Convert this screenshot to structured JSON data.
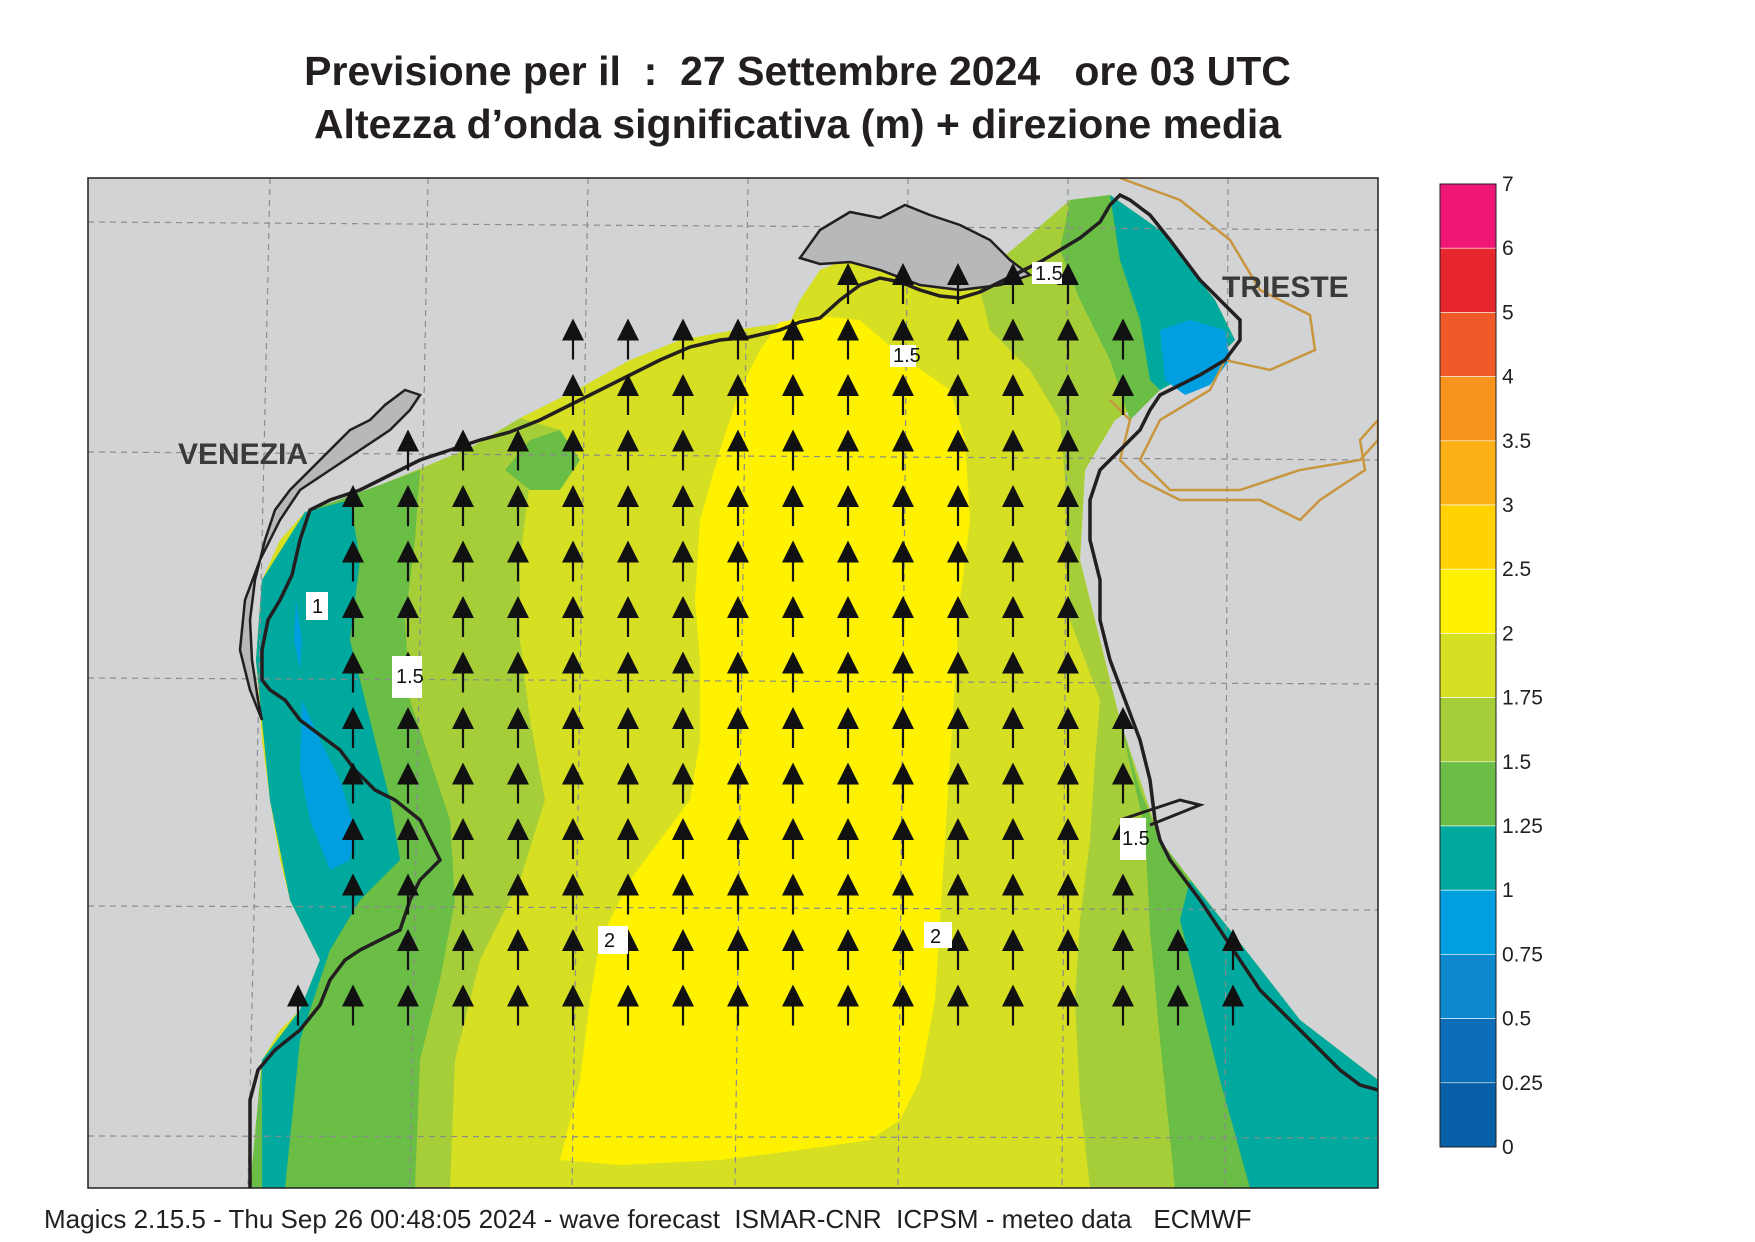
{
  "title": {
    "line1": "Previsione per il  :  27 Settembre 2024   ore 03 UTC",
    "line2": "Altezza d’onda significativa (m) + direzione media"
  },
  "footer": "Magics 2.15.5 - Thu Sep 26 00:48:05 2024 - wave forecast  ISMAR-CNR  ICPSM - meteo data   ECMWF",
  "cities": {
    "venezia": "VENEZIA",
    "trieste": "TRIESTE"
  },
  "contour_labels": [
    "1",
    "1.5",
    "1.5",
    "2",
    "2",
    "1.5",
    "1.5"
  ],
  "wave_direction": "north",
  "colorbar": {
    "levels": [
      "7",
      "6",
      "5",
      "4",
      "3.5",
      "3",
      "2.5",
      "2",
      "1.75",
      "1.5",
      "1.25",
      "1",
      "0.75",
      "0.5",
      "0.25",
      "0"
    ],
    "colors": [
      "#ee1778",
      "#e8262e",
      "#f05a28",
      "#f7941d",
      "#fbb116",
      "#ffd200",
      "#fff200",
      "#d7df23",
      "#a6ce39",
      "#6abd45",
      "#00a99d",
      "#00a0e0",
      "#0d88cf",
      "#0b6db8",
      "#075fa8"
    ]
  },
  "land_color": "#d1d3d4",
  "coast_color": "#231f20",
  "border_color": "#c8963e"
}
